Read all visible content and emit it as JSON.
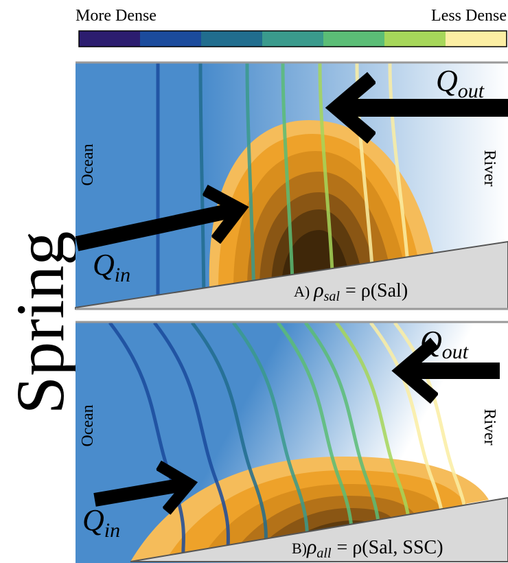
{
  "colorbar": {
    "left_label": "More Dense",
    "right_label": "Less Dense",
    "colors": [
      "#2c1d6f",
      "#1b4b9c",
      "#216d8e",
      "#3a9a8c",
      "#5bbd76",
      "#a6d65a",
      "#fbeea3"
    ]
  },
  "season": "Spring",
  "panels": [
    {
      "ocean": "Ocean",
      "river": "River",
      "q_out": {
        "symbol": "Q",
        "sub": "out"
      },
      "q_in": {
        "symbol": "Q",
        "sub": "in"
      },
      "formula": {
        "prefix": "A)",
        "rho": "ρ",
        "sub": "sal",
        "rest": "= ρ(Sal)"
      }
    },
    {
      "ocean": "Ocean",
      "river": "River",
      "q_out": {
        "symbol": "Q",
        "sub": "out"
      },
      "q_in": {
        "symbol": "Q",
        "sub": "in"
      },
      "formula": {
        "prefix": "B)",
        "rho": "ρ",
        "sub": "all",
        "rest": "= ρ(Sal, SSC)"
      }
    }
  ]
}
